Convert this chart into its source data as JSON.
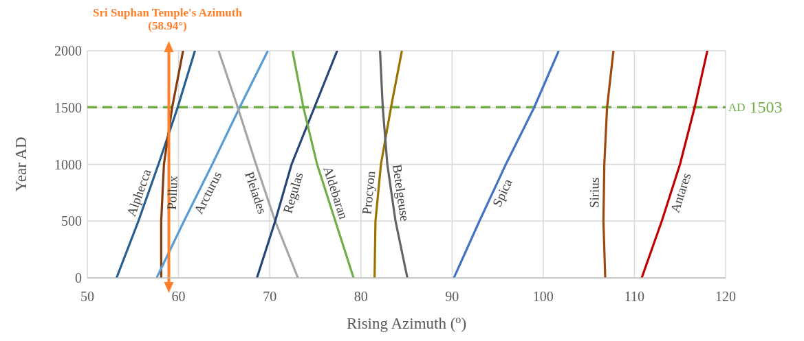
{
  "chart_data": {
    "type": "line",
    "xlabel": "Rising Azimuth ($^{o}$)",
    "ylabel": "Year AD",
    "xlim": [
      50,
      120
    ],
    "xticks": [
      50,
      60,
      70,
      80,
      90,
      100,
      110,
      120
    ],
    "ylim": [
      0,
      2000
    ],
    "yticks": [
      0,
      500,
      1000,
      1500,
      2000
    ],
    "grid": true,
    "legend": false,
    "marker": "none",
    "line_style": "solid",
    "series": [
      {
        "name": "Alphecca",
        "color": "#255e91",
        "x": [
          53.2,
          55.6,
          57.8,
          59.9,
          61.8
        ],
        "values": [
          0,
          500,
          1000,
          1500,
          2000
        ]
      },
      {
        "name": "Pollux",
        "color": "#843c0c",
        "x": [
          58.1,
          58.1,
          58.4,
          59.3,
          60.5
        ],
        "values": [
          0,
          500,
          1000,
          1500,
          2000
        ]
      },
      {
        "name": "Arcturus",
        "color": "#5b9bd5",
        "x": [
          57.6,
          60.6,
          63.7,
          66.7,
          69.8
        ],
        "values": [
          0,
          500,
          1000,
          1500,
          2000
        ]
      },
      {
        "name": "Pleiades",
        "color": "#a5a5a5",
        "x": [
          73.1,
          70.6,
          68.5,
          66.5,
          64.4
        ],
        "values": [
          0,
          500,
          1000,
          1500,
          2000
        ]
      },
      {
        "name": "Regulas",
        "color": "#264478",
        "x": [
          68.6,
          70.6,
          72.4,
          74.9,
          77.4
        ],
        "values": [
          0,
          500,
          1000,
          1500,
          2000
        ]
      },
      {
        "name": "Aldebaran",
        "color": "#70ad47",
        "x": [
          79.2,
          77.2,
          75.2,
          73.7,
          72.5
        ],
        "values": [
          0,
          500,
          1000,
          1500,
          2000
        ]
      },
      {
        "name": "Procyon",
        "color": "#997300",
        "x": [
          81.5,
          81.6,
          82.2,
          83.3,
          84.5
        ],
        "values": [
          0,
          500,
          1000,
          1500,
          2000
        ]
      },
      {
        "name": "Betelgeuse",
        "color": "#636363",
        "x": [
          85.1,
          83.8,
          82.9,
          82.4,
          82.1
        ],
        "values": [
          0,
          500,
          1000,
          1500,
          2000
        ]
      },
      {
        "name": "Spica",
        "color": "#4472c4",
        "x": [
          90.2,
          93.0,
          95.9,
          99.0,
          101.7
        ],
        "values": [
          0,
          500,
          1000,
          1500,
          2000
        ]
      },
      {
        "name": "Sirius",
        "color": "#9e480e",
        "x": [
          106.8,
          106.6,
          106.7,
          107.0,
          107.7
        ],
        "values": [
          0,
          500,
          1000,
          1500,
          2000
        ]
      },
      {
        "name": "Antares",
        "color": "#c00000",
        "x": [
          110.8,
          113.0,
          115.0,
          116.6,
          118.0
        ],
        "values": [
          0,
          500,
          1000,
          1500,
          2000
        ]
      }
    ],
    "ref_lines": [
      {
        "axis": "y",
        "value": 1503,
        "label": "AD 1503",
        "color": "#70ad47",
        "line_style": "dashed"
      },
      {
        "axis": "x",
        "value": 58.94,
        "label": "Sri Suphan Temple's Azimuth (58.94°)",
        "color": "#ff7f2a",
        "line_style": "solid"
      }
    ]
  }
}
